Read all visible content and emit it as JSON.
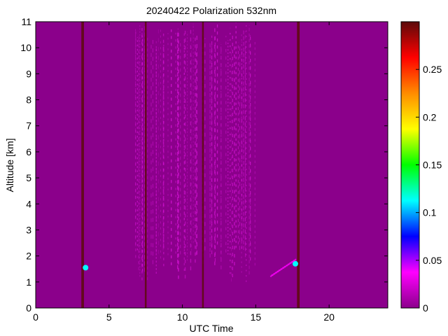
{
  "chart_data": {
    "type": "heatmap",
    "title": "20240422 Polarization 532nm",
    "xlabel": "UTC Time",
    "ylabel": "Altitude [km]",
    "xlim": [
      0,
      24
    ],
    "ylim": [
      0,
      11
    ],
    "x_ticks": [
      0,
      5,
      10,
      15,
      20
    ],
    "y_ticks": [
      0,
      1,
      2,
      3,
      4,
      5,
      6,
      7,
      8,
      9,
      10,
      11
    ],
    "colorbar": {
      "range": [
        0,
        0.3
      ],
      "ticks": [
        0,
        0.05,
        0.1,
        0.15,
        0.2,
        0.25
      ],
      "colormap": [
        "#8b008b",
        "#ff00ff",
        "#0000ff",
        "#00ffff",
        "#00ff00",
        "#ffff00",
        "#ff8c00",
        "#ff0000",
        "#5c0a0a"
      ]
    },
    "background_value": 0.01,
    "features": [
      {
        "kind": "vertical-streak",
        "x": 3.2,
        "width": 0.18,
        "y_range": [
          0,
          11
        ],
        "value": 0.3
      },
      {
        "kind": "vertical-streak",
        "x": 7.5,
        "width": 0.12,
        "y_range": [
          0,
          11
        ],
        "value": 0.3
      },
      {
        "kind": "vertical-streak",
        "x": 11.4,
        "width": 0.12,
        "y_range": [
          0,
          11
        ],
        "value": 0.3
      },
      {
        "kind": "vertical-streak",
        "x": 17.9,
        "width": 0.18,
        "y_range": [
          0,
          11
        ],
        "value": 0.3
      },
      {
        "kind": "noise-band",
        "x_range": [
          6.8,
          15.0
        ],
        "y_range": [
          1.0,
          11
        ],
        "value": 0.025
      },
      {
        "kind": "spot",
        "x": 3.4,
        "y": 1.55,
        "value": 0.1
      },
      {
        "kind": "spot",
        "x": 17.7,
        "y": 1.7,
        "value": 0.12
      },
      {
        "kind": "slanted-layer",
        "x_range": [
          16.0,
          17.6
        ],
        "y_range": [
          1.2,
          1.8
        ],
        "value": 0.04
      }
    ]
  },
  "colors": {
    "background": "#8b008b",
    "streak": "#5c0a0a",
    "noise": "#d214d2"
  }
}
